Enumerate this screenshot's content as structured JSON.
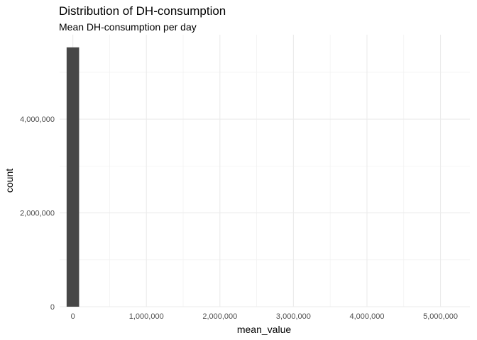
{
  "chart_data": {
    "type": "bar",
    "title": "Distribution of DH-consumption",
    "subtitle": "Mean DH-consumption per day",
    "xlabel": "mean_value",
    "ylabel": "count",
    "xlim": [
      -180000,
      5400000
    ],
    "ylim": [
      0,
      5800000
    ],
    "x_ticks": [
      0,
      1000000,
      2000000,
      3000000,
      4000000,
      5000000
    ],
    "x_tick_labels": [
      "0",
      "1,000,000",
      "2,000,000",
      "3,000,000",
      "4,000,000",
      "5,000,000"
    ],
    "y_ticks": [
      0,
      2000000,
      4000000
    ],
    "y_tick_labels": [
      "0",
      "2,000,000",
      "4,000,000"
    ],
    "bins": [
      {
        "x_start": -85000,
        "x_end": 85000,
        "count": 5530000
      }
    ],
    "grid": true,
    "bar_color": "#474747"
  }
}
